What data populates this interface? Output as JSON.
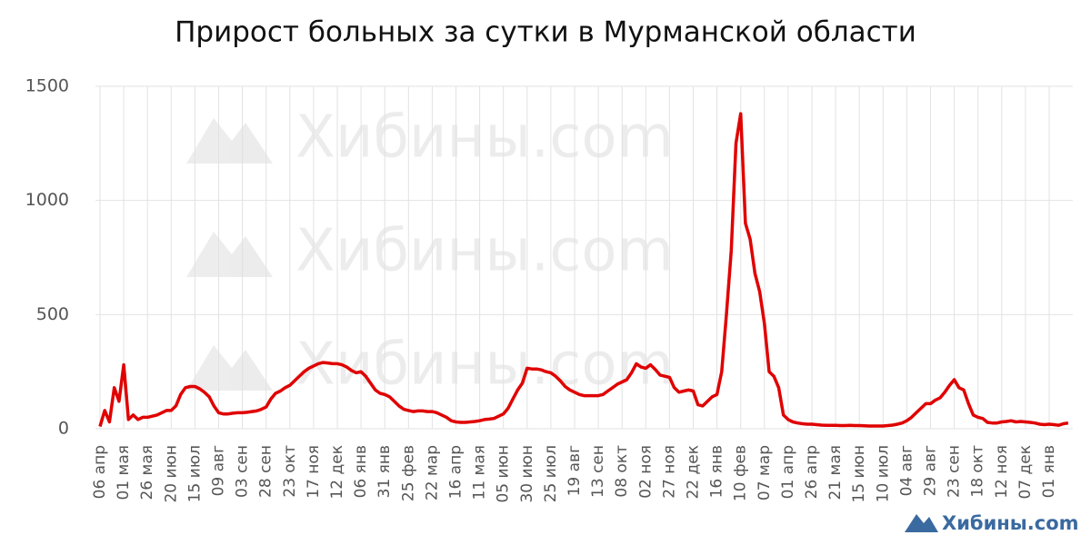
{
  "chart_data": {
    "type": "line",
    "title": "Прирост больных за сутки в Мурманской области",
    "watermark": "Хибины.com",
    "categories": [
      "06 апр",
      null,
      null,
      null,
      null,
      "01 мая",
      null,
      null,
      null,
      null,
      "26 мая",
      null,
      null,
      null,
      null,
      "20 июн",
      null,
      null,
      null,
      null,
      "15 июл",
      null,
      null,
      null,
      null,
      "09 авг",
      null,
      null,
      null,
      null,
      "03 сен",
      null,
      null,
      null,
      null,
      "28 сен",
      null,
      null,
      null,
      null,
      "23 окт",
      null,
      null,
      null,
      null,
      "17 ноя",
      null,
      null,
      null,
      null,
      "12 дек",
      null,
      null,
      null,
      null,
      "06 янв",
      null,
      null,
      null,
      null,
      "31 янв",
      null,
      null,
      null,
      null,
      "25 фев",
      null,
      null,
      null,
      null,
      "22 мар",
      null,
      null,
      null,
      null,
      "16 апр",
      null,
      null,
      null,
      null,
      "11 мая",
      null,
      null,
      null,
      null,
      "05 июн",
      null,
      null,
      null,
      null,
      "30 июн",
      null,
      null,
      null,
      null,
      "25 июл",
      null,
      null,
      null,
      null,
      "19 авг",
      null,
      null,
      null,
      null,
      "13 сен",
      null,
      null,
      null,
      null,
      "08 окт",
      null,
      null,
      null,
      null,
      "02 ноя",
      null,
      null,
      null,
      null,
      "27 ноя",
      null,
      null,
      null,
      null,
      "22 дек",
      null,
      null,
      null,
      null,
      "16 янв",
      null,
      null,
      null,
      null,
      "10 фев",
      null,
      null,
      null,
      null,
      "07 мар",
      null,
      null,
      null,
      null,
      "01 апр",
      null,
      null,
      null,
      null,
      "26 апр",
      null,
      null,
      null,
      null,
      "21 мая",
      null,
      null,
      null,
      null,
      "15 июн",
      null,
      null,
      null,
      null,
      "10 июл",
      null,
      null,
      null,
      null,
      "04 авг",
      null,
      null,
      null,
      null,
      "29 авг",
      null,
      null,
      null,
      null,
      "23 сен",
      null,
      null,
      null,
      null,
      "18 окт",
      null,
      null,
      null,
      null,
      "12 ноя",
      null,
      null,
      null,
      null,
      "07 дек",
      null,
      null,
      null,
      null,
      "01 янв",
      null,
      null,
      null,
      null
    ],
    "series": [
      {
        "color": "#e00000",
        "values": [
          10,
          80,
          30,
          180,
          120,
          280,
          40,
          60,
          40,
          50,
          50,
          55,
          60,
          70,
          80,
          80,
          100,
          150,
          180,
          185,
          185,
          175,
          160,
          140,
          100,
          70,
          65,
          65,
          68,
          70,
          70,
          72,
          75,
          78,
          85,
          95,
          130,
          155,
          165,
          180,
          190,
          210,
          230,
          250,
          265,
          275,
          285,
          290,
          288,
          285,
          285,
          280,
          270,
          255,
          245,
          250,
          230,
          200,
          170,
          155,
          150,
          140,
          120,
          100,
          85,
          80,
          75,
          78,
          78,
          75,
          75,
          70,
          60,
          50,
          35,
          30,
          28,
          28,
          30,
          32,
          35,
          40,
          42,
          45,
          55,
          65,
          90,
          130,
          170,
          200,
          265,
          262,
          262,
          258,
          250,
          245,
          230,
          210,
          185,
          170,
          160,
          150,
          145,
          145,
          145,
          145,
          150,
          165,
          180,
          195,
          205,
          215,
          245,
          285,
          270,
          265,
          280,
          260,
          235,
          230,
          225,
          180,
          160,
          165,
          170,
          165,
          105,
          100,
          120,
          140,
          150,
          250,
          500,
          780,
          1250,
          1380,
          900,
          830,
          680,
          600,
          460,
          250,
          230,
          180,
          60,
          40,
          30,
          25,
          22,
          20,
          20,
          18,
          16,
          15,
          15,
          15,
          14,
          14,
          15,
          14,
          14,
          13,
          12,
          12,
          12,
          12,
          14,
          16,
          20,
          25,
          35,
          50,
          70,
          90,
          110,
          110,
          125,
          135,
          160,
          190,
          215,
          180,
          170,
          110,
          60,
          50,
          45,
          28,
          25,
          25,
          30,
          32,
          35,
          30,
          32,
          30,
          28,
          25,
          20,
          18,
          20,
          18,
          15,
          22,
          25
        ]
      }
    ],
    "ylim": [
      0,
      1500
    ],
    "yticks": [
      0,
      500,
      1000,
      1500
    ],
    "grid": true
  }
}
